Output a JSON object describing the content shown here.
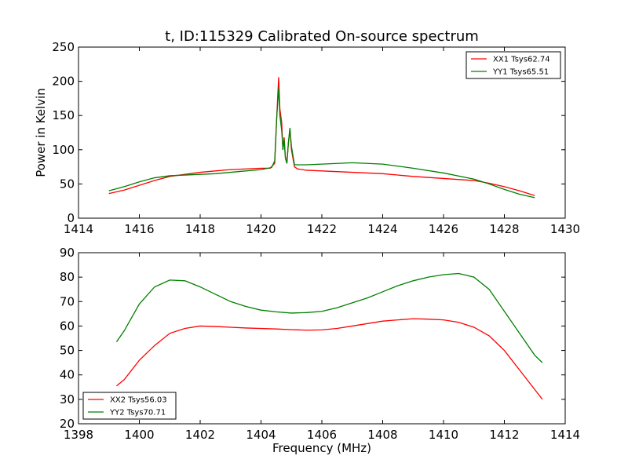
{
  "chart_data": [
    {
      "type": "line",
      "title": "t, ID:115329 Calibrated On-source spectrum",
      "xlabel": "",
      "ylabel": "Power in Kelvin",
      "xlim": [
        1414,
        1430
      ],
      "ylim": [
        0,
        250
      ],
      "xticks": [
        1414,
        1416,
        1418,
        1420,
        1422,
        1424,
        1426,
        1428,
        1430
      ],
      "yticks": [
        0,
        50,
        100,
        150,
        200,
        250
      ],
      "legend_position": "top-right",
      "series": [
        {
          "name": "XX1 Tsys62.74",
          "color": "#ff0000",
          "points": [
            [
              1415,
              36
            ],
            [
              1415.5,
              41
            ],
            [
              1416,
              48
            ],
            [
              1416.5,
              55
            ],
            [
              1417,
              61
            ],
            [
              1417.5,
              64
            ],
            [
              1418,
              67
            ],
            [
              1418.5,
              69
            ],
            [
              1419,
              71
            ],
            [
              1419.5,
              72
            ],
            [
              1420,
              73
            ],
            [
              1420.3,
              73
            ],
            [
              1420.45,
              80
            ],
            [
              1420.52,
              150
            ],
            [
              1420.58,
              206
            ],
            [
              1420.62,
              160
            ],
            [
              1420.68,
              140
            ],
            [
              1420.72,
              100
            ],
            [
              1420.76,
              118
            ],
            [
              1420.8,
              90
            ],
            [
              1420.85,
              80
            ],
            [
              1420.9,
              110
            ],
            [
              1420.95,
              130
            ],
            [
              1421.0,
              100
            ],
            [
              1421.1,
              75
            ],
            [
              1421.2,
              72
            ],
            [
              1421.5,
              70
            ],
            [
              1422,
              69
            ],
            [
              1423,
              67
            ],
            [
              1424,
              65
            ],
            [
              1425,
              61
            ],
            [
              1426,
              58
            ],
            [
              1427,
              55
            ],
            [
              1427.5,
              51
            ],
            [
              1428,
              46
            ],
            [
              1428.5,
              40
            ],
            [
              1429,
              33
            ]
          ]
        },
        {
          "name": "YY1 Tsys65.51",
          "color": "#008000",
          "points": [
            [
              1415,
              40
            ],
            [
              1415.5,
              46
            ],
            [
              1416,
              53
            ],
            [
              1416.5,
              59
            ],
            [
              1417,
              62
            ],
            [
              1417.5,
              63
            ],
            [
              1418,
              64
            ],
            [
              1418.5,
              65
            ],
            [
              1419,
              67
            ],
            [
              1419.5,
              69
            ],
            [
              1420,
              71
            ],
            [
              1420.35,
              74
            ],
            [
              1420.45,
              84
            ],
            [
              1420.52,
              150
            ],
            [
              1420.58,
              190
            ],
            [
              1420.62,
              150
            ],
            [
              1420.68,
              128
            ],
            [
              1420.72,
              100
            ],
            [
              1420.76,
              115
            ],
            [
              1420.8,
              88
            ],
            [
              1420.85,
              80
            ],
            [
              1420.9,
              110
            ],
            [
              1420.95,
              132
            ],
            [
              1421.0,
              105
            ],
            [
              1421.1,
              78
            ],
            [
              1421.5,
              78
            ],
            [
              1422,
              79
            ],
            [
              1423,
              81
            ],
            [
              1424,
              79
            ],
            [
              1425,
              73
            ],
            [
              1426,
              66
            ],
            [
              1427,
              57
            ],
            [
              1427.5,
              50
            ],
            [
              1428,
              42
            ],
            [
              1428.5,
              35
            ],
            [
              1429,
              30
            ]
          ]
        }
      ]
    },
    {
      "type": "line",
      "title": "",
      "xlabel": "Frequency (MHz)",
      "ylabel": "",
      "xlim": [
        1398,
        1414
      ],
      "ylim": [
        20,
        90
      ],
      "xticks": [
        1398,
        1400,
        1402,
        1404,
        1406,
        1408,
        1410,
        1412,
        1414
      ],
      "yticks": [
        20,
        30,
        40,
        50,
        60,
        70,
        80,
        90
      ],
      "legend_position": "bottom-left",
      "series": [
        {
          "name": "XX2 Tsys56.03",
          "color": "#ff0000",
          "points": [
            [
              1399.25,
              35.5
            ],
            [
              1399.5,
              38
            ],
            [
              1400,
              46
            ],
            [
              1400.5,
              52
            ],
            [
              1401,
              57
            ],
            [
              1401.5,
              59
            ],
            [
              1402,
              60
            ],
            [
              1402.5,
              59.8
            ],
            [
              1403,
              59.5
            ],
            [
              1403.5,
              59.2
            ],
            [
              1404,
              59
            ],
            [
              1404.5,
              58.8
            ],
            [
              1405,
              58.5
            ],
            [
              1405.5,
              58.3
            ],
            [
              1406,
              58.4
            ],
            [
              1406.5,
              59
            ],
            [
              1407,
              60
            ],
            [
              1407.5,
              61
            ],
            [
              1408,
              62
            ],
            [
              1408.5,
              62.5
            ],
            [
              1409,
              63
            ],
            [
              1409.5,
              62.8
            ],
            [
              1410,
              62.5
            ],
            [
              1410.5,
              61.5
            ],
            [
              1411,
              59.5
            ],
            [
              1411.5,
              56
            ],
            [
              1412,
              50
            ],
            [
              1412.5,
              42
            ],
            [
              1413,
              34
            ],
            [
              1413.25,
              30
            ]
          ]
        },
        {
          "name": "YY2 Tsys70.71",
          "color": "#008000",
          "points": [
            [
              1399.25,
              53.5
            ],
            [
              1399.5,
              58
            ],
            [
              1400,
              69
            ],
            [
              1400.5,
              76
            ],
            [
              1401,
              78.8
            ],
            [
              1401.5,
              78.5
            ],
            [
              1402,
              76
            ],
            [
              1402.5,
              73
            ],
            [
              1403,
              70
            ],
            [
              1403.5,
              68
            ],
            [
              1404,
              66.5
            ],
            [
              1404.5,
              65.8
            ],
            [
              1405,
              65.3
            ],
            [
              1405.5,
              65.5
            ],
            [
              1406,
              66
            ],
            [
              1406.5,
              67.5
            ],
            [
              1407,
              69.5
            ],
            [
              1407.5,
              71.5
            ],
            [
              1408,
              74
            ],
            [
              1408.5,
              76.5
            ],
            [
              1409,
              78.5
            ],
            [
              1409.5,
              80
            ],
            [
              1410,
              81
            ],
            [
              1410.5,
              81.5
            ],
            [
              1411,
              80
            ],
            [
              1411.5,
              75
            ],
            [
              1412,
              66
            ],
            [
              1412.5,
              57
            ],
            [
              1413,
              48
            ],
            [
              1413.25,
              45
            ]
          ]
        }
      ]
    }
  ]
}
